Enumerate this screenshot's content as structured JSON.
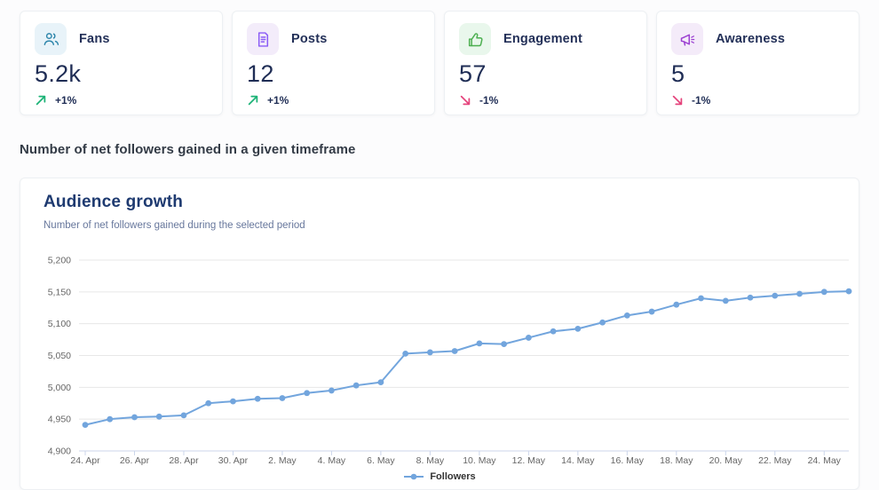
{
  "stat_cards": [
    {
      "label": "Fans",
      "value": "5.2k",
      "trend": "+1%",
      "direction": "up",
      "icon": "fans-icon",
      "icon_color": "#2e86ab",
      "icon_bg": "#e8f3f9"
    },
    {
      "label": "Posts",
      "value": "12",
      "trend": "+1%",
      "direction": "up",
      "icon": "posts-icon",
      "icon_color": "#8b5cf6",
      "icon_bg": "#f3ecfa"
    },
    {
      "label": "Engagement",
      "value": "57",
      "trend": "-1%",
      "direction": "down",
      "icon": "engagement-icon",
      "icon_color": "#4caf50",
      "icon_bg": "#e9f7ec"
    },
    {
      "label": "Awareness",
      "value": "5",
      "trend": "-1%",
      "direction": "down",
      "icon": "awareness-icon",
      "icon_color": "#9b3fd1",
      "icon_bg": "#f4ebf9"
    }
  ],
  "section_heading": "Number of net followers gained in a given timeframe",
  "chart_card": {
    "title": "Audience growth",
    "subtitle": "Number of net followers gained during the selected period",
    "legend_label": "Followers"
  },
  "colors": {
    "trend_up": "#1db377",
    "trend_down": "#e5447c",
    "line": "#72a5dd",
    "grid": "#e7e7e7",
    "axis": "#ccd6eb",
    "tick_label": "#666666"
  },
  "chart_data": {
    "type": "line",
    "title": "Audience growth",
    "x": [
      "24. Apr",
      "25. Apr",
      "26. Apr",
      "27. Apr",
      "28. Apr",
      "29. Apr",
      "30. Apr",
      "1. May",
      "2. May",
      "3. May",
      "4. May",
      "5. May",
      "6. May",
      "7. May",
      "8. May",
      "9. May",
      "10. May",
      "11. May",
      "12. May",
      "13. May",
      "14. May",
      "15. May",
      "16. May",
      "17. May",
      "18. May",
      "19. May",
      "20. May",
      "21. May",
      "22. May",
      "23. May",
      "24. May",
      "25. May"
    ],
    "x_tick_every": 2,
    "series": [
      {
        "name": "Followers",
        "values": [
          4941,
          4950,
          4953,
          4954,
          4956,
          4975,
          4978,
          4982,
          4983,
          4991,
          4995,
          5003,
          5008,
          5053,
          5055,
          5057,
          5069,
          5068,
          5078,
          5088,
          5092,
          5102,
          5113,
          5119,
          5130,
          5140,
          5136,
          5141,
          5144,
          5147,
          5150,
          5151
        ]
      }
    ],
    "ylim": [
      4900,
      5200
    ],
    "ytick_step": 50,
    "grid": "horizontal",
    "legend_position": "bottom"
  }
}
